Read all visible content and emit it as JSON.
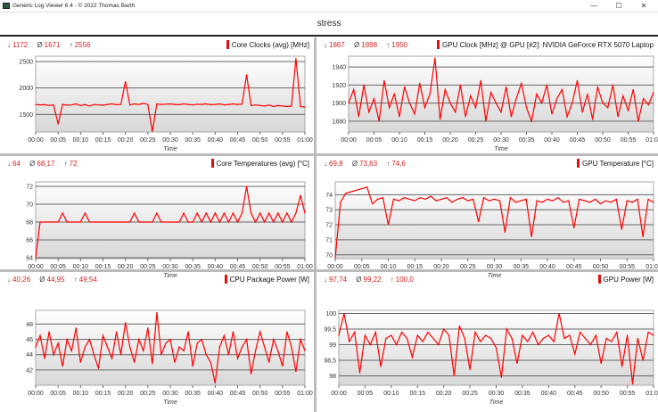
{
  "window": {
    "title": "Generic Log Viewer 6.4 - © 2022 Thomas Barth",
    "controls": [
      "—",
      "☐",
      "✕"
    ]
  },
  "header": {
    "title": "stress"
  },
  "accent_color": "#e01010",
  "chart_data": [
    {
      "type": "line",
      "title": "Core Clocks (avg) [MHz]",
      "stats": {
        "min": "1172",
        "avg": "1671",
        "max": "2556"
      },
      "xlabel": "Time",
      "xticks": [
        "00:00",
        "00:05",
        "00:10",
        "00:15",
        "00:20",
        "00:25",
        "00:30",
        "00:35",
        "00:40",
        "00:45",
        "00:50",
        "00:55",
        "01:00"
      ],
      "yticks": [
        1500,
        2000,
        2500
      ],
      "ylim": [
        1170,
        2600
      ],
      "grid": true,
      "color": "#ff0000",
      "values": [
        1690,
        1680,
        1685,
        1670,
        1680,
        1320,
        1690,
        1675,
        1680,
        1700,
        1670,
        1685,
        1660,
        1690,
        1680,
        1675,
        1690,
        1700,
        1685,
        1690,
        2120,
        1680,
        1700,
        1690,
        1710,
        1690,
        1180,
        1700,
        1690,
        1695,
        1700,
        1690,
        1685,
        1700,
        1690,
        1680,
        1695,
        1690,
        1700,
        1685,
        1690,
        1700,
        1680,
        1690,
        1700,
        1690,
        1695,
        2250,
        1670,
        1680,
        1670,
        1660,
        1680,
        1650,
        1670,
        1660,
        1650,
        1660,
        2556,
        1650,
        1640
      ]
    },
    {
      "type": "line",
      "title": "GPU Clock [MHz] @ GPU [#2]: NVIDIA GeForce RTX 5070 Laptop",
      "stats": {
        "min": "1867",
        "avg": "1898",
        "max": "1950"
      },
      "xlabel": "Time",
      "xticks": [
        "00:00",
        "00:05",
        "00:10",
        "00:15",
        "00:20",
        "00:25",
        "00:30",
        "00:35",
        "00:40",
        "00:45",
        "00:50",
        "00:55",
        "01:00"
      ],
      "yticks": [
        1880,
        1900,
        1920,
        1940
      ],
      "ylim": [
        1868,
        1952
      ],
      "grid": true,
      "color": "#ff0000",
      "values": [
        1900,
        1915,
        1885,
        1920,
        1890,
        1905,
        1880,
        1925,
        1895,
        1910,
        1885,
        1918,
        1900,
        1888,
        1922,
        1895,
        1910,
        1950,
        1882,
        1915,
        1900,
        1890,
        1920,
        1885,
        1908,
        1895,
        1925,
        1880,
        1912,
        1900,
        1890,
        1918,
        1885,
        1905,
        1922,
        1895,
        1880,
        1910,
        1900,
        1920,
        1888,
        1905,
        1915,
        1885,
        1900,
        1925,
        1890,
        1910,
        1882,
        1918,
        1900,
        1895,
        1920,
        1885,
        1908,
        1892,
        1915,
        1880,
        1905,
        1898,
        1912
      ]
    },
    {
      "type": "line",
      "title": "Core Temperatures (avg) [°C]",
      "stats": {
        "min": "64",
        "avg": "68,17",
        "max": "72"
      },
      "xlabel": "Time",
      "xticks": [
        "00:00",
        "00:05",
        "00:10",
        "00:15",
        "00:20",
        "00:25",
        "00:30",
        "00:35",
        "00:40",
        "00:45",
        "00:50",
        "00:55",
        "01:00"
      ],
      "yticks": [
        64,
        66,
        68,
        70,
        72
      ],
      "ylim": [
        63.9,
        72.5
      ],
      "grid": true,
      "color": "#ff0000",
      "values": [
        64,
        68,
        68,
        68,
        68,
        68,
        69,
        68,
        68,
        68,
        68,
        69,
        68,
        68,
        68,
        68,
        68,
        68,
        68,
        68,
        68,
        68,
        69,
        68,
        68,
        68,
        68,
        69,
        68,
        68,
        68,
        68,
        68,
        69,
        68,
        68,
        69,
        68,
        69,
        68,
        69,
        68,
        69,
        68,
        69,
        68,
        69,
        72,
        69,
        68,
        69,
        68,
        69,
        68,
        69,
        68,
        69,
        68,
        69,
        71,
        69
      ]
    },
    {
      "type": "line",
      "title": "GPU Temperature [°C]",
      "stats": {
        "min": "69,8",
        "avg": "73,63",
        "max": "74,6"
      },
      "xlabel": "Time",
      "xticks": [
        "00:00",
        "00:05",
        "00:10",
        "00:15",
        "00:20",
        "00:25",
        "00:30",
        "00:35",
        "00:40",
        "00:45",
        "00:50",
        "00:55",
        "01:00"
      ],
      "yticks": [
        70,
        71,
        72,
        73,
        74
      ],
      "ylim": [
        69.75,
        74.85
      ],
      "grid": true,
      "color": "#ff0000",
      "values": [
        69.8,
        73.5,
        74.1,
        74.2,
        74.3,
        74.4,
        74.5,
        73.4,
        73.7,
        73.8,
        72.0,
        73.7,
        73.6,
        73.8,
        73.7,
        73.6,
        73.8,
        73.7,
        73.9,
        73.6,
        73.7,
        73.8,
        73.5,
        73.7,
        73.8,
        73.6,
        73.7,
        72.2,
        73.8,
        73.6,
        73.7,
        73.6,
        71.5,
        73.8,
        73.5,
        73.6,
        73.7,
        71.2,
        73.6,
        73.5,
        73.7,
        73.6,
        73.8,
        73.5,
        73.6,
        71.8,
        73.7,
        73.6,
        73.5,
        73.7,
        73.4,
        73.6,
        73.5,
        73.7,
        71.7,
        73.6,
        73.5,
        73.7,
        71.2,
        73.7,
        73.5
      ]
    },
    {
      "type": "line",
      "title": "CPU Package Power [W]",
      "stats": {
        "min": "40,26",
        "avg": "44,95",
        "max": "49,54"
      },
      "xlabel": "Time",
      "xticks": [
        "00:00",
        "00:05",
        "00:10",
        "00:15",
        "00:20",
        "00:25",
        "00:30",
        "00:35",
        "00:40",
        "00:45",
        "00:50",
        "00:55",
        "01:00"
      ],
      "yticks": [
        42,
        44,
        46,
        48
      ],
      "ylim": [
        40,
        49.8
      ],
      "grid": true,
      "color": "#ff0000",
      "values": [
        45,
        46.5,
        43.5,
        47,
        44,
        45.5,
        42.5,
        46,
        44.5,
        47.5,
        43,
        45,
        46,
        44,
        42.2,
        46.5,
        45,
        43.5,
        47,
        44,
        48.2,
        45,
        43,
        46,
        44.5,
        47.5,
        42.8,
        49.5,
        44,
        45.5,
        46,
        43,
        45,
        44.5,
        47,
        42.5,
        45.5,
        46,
        44,
        43,
        40.3,
        45,
        46.5,
        44,
        47,
        43.5,
        45,
        46,
        41.5,
        44.5,
        47,
        45,
        43,
        46,
        44.5,
        42.5,
        47,
        45,
        41.8,
        46,
        44.5
      ]
    },
    {
      "type": "line",
      "title": "GPU Power [W]",
      "stats": {
        "min": "97,74",
        "avg": "99,22",
        "max": "100,0"
      },
      "xlabel": "Time",
      "xticks": [
        "00:00",
        "00:05",
        "00:10",
        "00:15",
        "00:20",
        "00:25",
        "00:30",
        "00:35",
        "00:40",
        "00:45",
        "00:50",
        "00:55",
        "01:00"
      ],
      "yticks": [
        "98",
        "98,5",
        "99",
        "99,5",
        "100"
      ],
      "ylim": [
        97.7,
        100.1
      ],
      "grid": true,
      "color": "#ff0000",
      "values": [
        99.3,
        100,
        99.1,
        99.4,
        98.1,
        99.3,
        99.0,
        99.4,
        98.3,
        99.2,
        99.3,
        99.0,
        99.4,
        99.2,
        98.6,
        99.3,
        99.1,
        99.4,
        99.2,
        99.0,
        99.5,
        99.3,
        98.0,
        99.6,
        99.2,
        98.2,
        99.4,
        99.1,
        99.3,
        99.2,
        98.9,
        97.95,
        99.5,
        99.2,
        98.4,
        99.3,
        99.1,
        99.4,
        99.0,
        99.2,
        99.3,
        99.1,
        100,
        99.2,
        99.3,
        98.7,
        99.4,
        99.2,
        99.0,
        99.3,
        98.4,
        99.2,
        99.1,
        99.4,
        98.3,
        99.3,
        97.74,
        99.2,
        98.5,
        99.4,
        99.3
      ]
    }
  ]
}
